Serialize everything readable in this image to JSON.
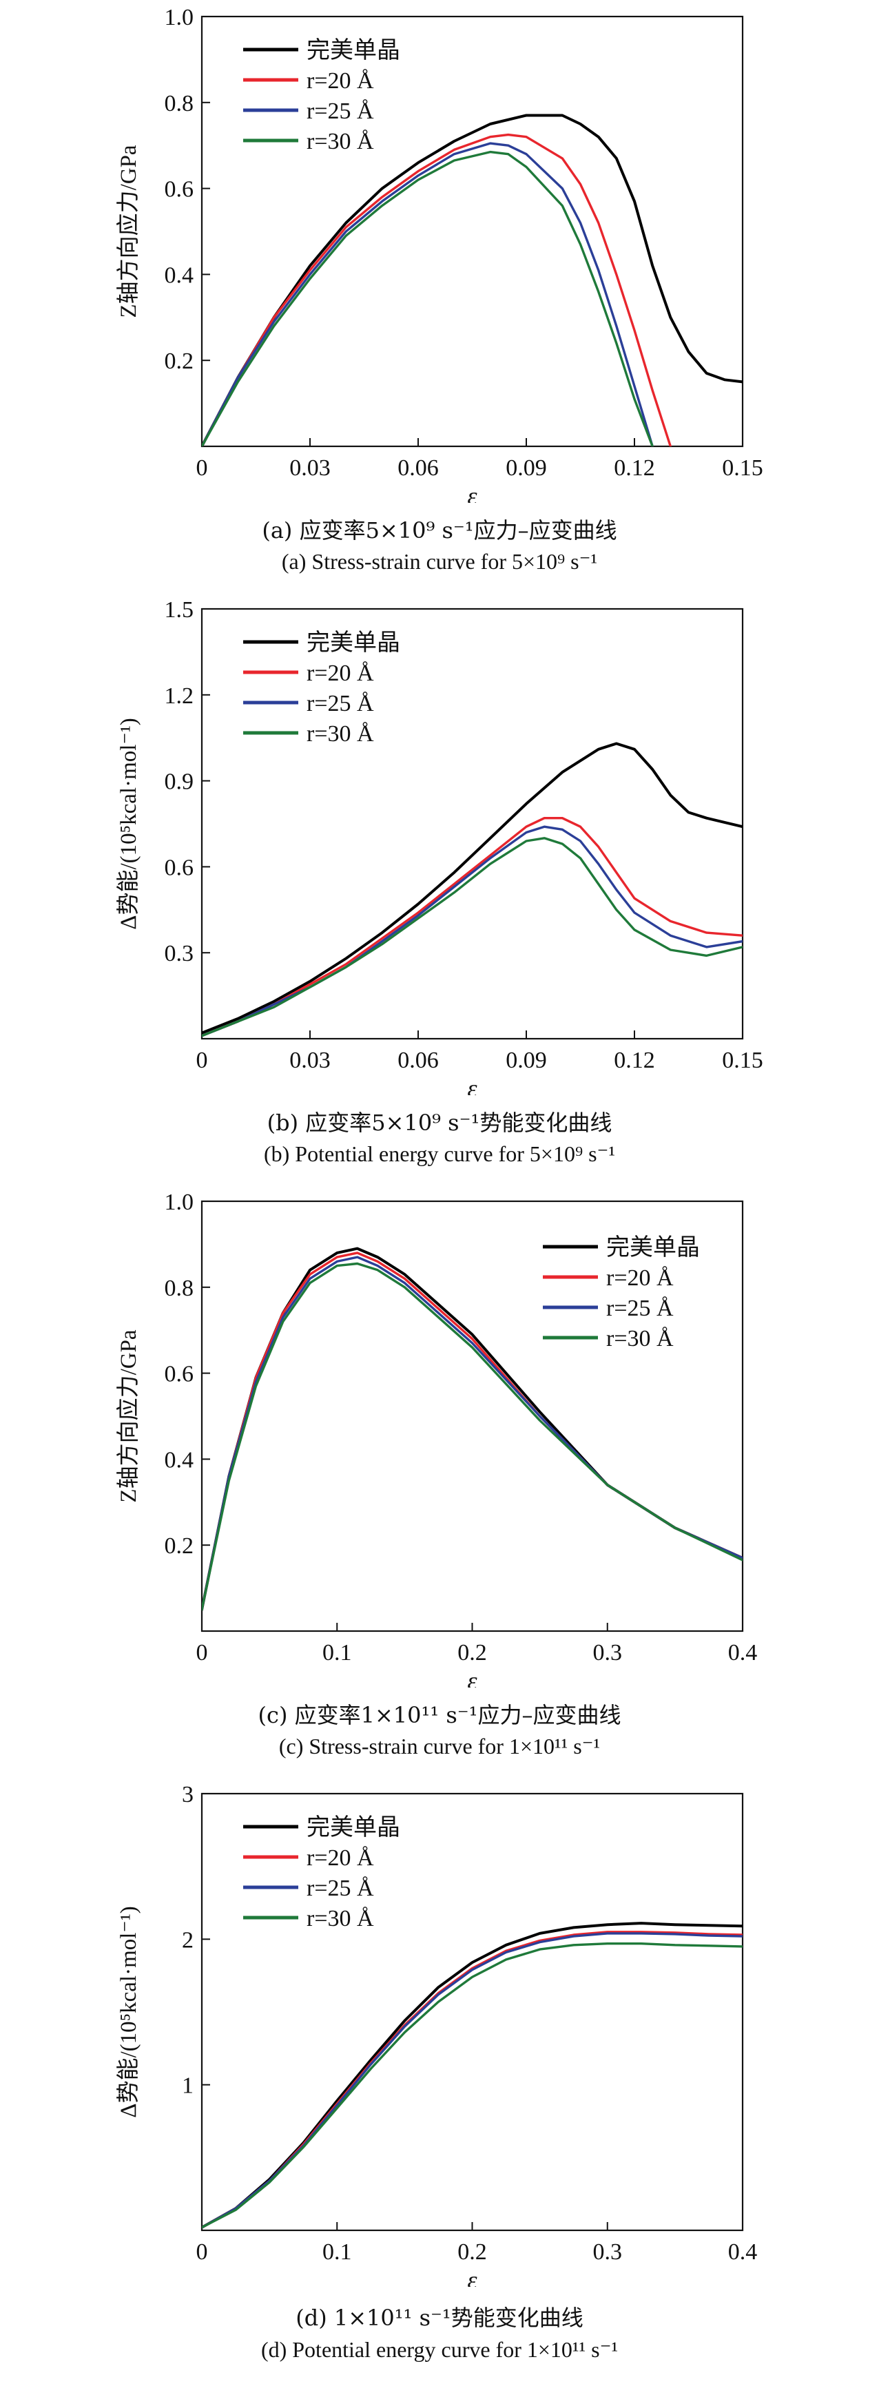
{
  "colors": {
    "perfect": "#000000",
    "r20": "#e8262d",
    "r25": "#2b3f98",
    "r30": "#1f7a3a"
  },
  "chart_data": [
    {
      "type": "line",
      "caption_cn": "(a) 应变率5×10⁹ s⁻¹应力–应变曲线",
      "caption_en": "(a) Stress-strain curve for 5×10⁹ s⁻¹",
      "xlabel": "ε",
      "ylabel": "Z轴方向应力/GPa",
      "xlim": [
        0,
        0.15
      ],
      "ylim": [
        0,
        1.0
      ],
      "xticks": [
        0,
        0.03,
        0.06,
        0.09,
        0.12,
        0.15
      ],
      "xtick_labels": [
        "0",
        "0.03",
        "0.06",
        "0.09",
        "0.12",
        "0.15"
      ],
      "yticks": [
        0.2,
        0.4,
        0.6,
        0.8,
        1.0
      ],
      "ytick_labels": [
        "0.2",
        "0.4",
        "0.6",
        "0.8",
        "1.0"
      ],
      "legend_position": "top-left",
      "series": [
        {
          "name": "完美单晶",
          "color": "#000000",
          "x": [
            0,
            0.01,
            0.02,
            0.03,
            0.04,
            0.05,
            0.06,
            0.07,
            0.08,
            0.09,
            0.1,
            0.105,
            0.11,
            0.115,
            0.12,
            0.125,
            0.13,
            0.135,
            0.14,
            0.145,
            0.15
          ],
          "y": [
            0,
            0.16,
            0.3,
            0.42,
            0.52,
            0.6,
            0.66,
            0.71,
            0.75,
            0.77,
            0.77,
            0.75,
            0.72,
            0.67,
            0.57,
            0.42,
            0.3,
            0.22,
            0.17,
            0.155,
            0.15
          ]
        },
        {
          "name": "r=20 Å",
          "color": "#e8262d",
          "x": [
            0,
            0.01,
            0.02,
            0.03,
            0.04,
            0.05,
            0.06,
            0.07,
            0.08,
            0.085,
            0.09,
            0.1,
            0.105,
            0.11,
            0.115,
            0.12,
            0.125,
            0.13
          ],
          "y": [
            0,
            0.16,
            0.3,
            0.41,
            0.51,
            0.58,
            0.64,
            0.69,
            0.72,
            0.725,
            0.72,
            0.67,
            0.61,
            0.52,
            0.4,
            0.27,
            0.13,
            0
          ]
        },
        {
          "name": "r=25 Å",
          "color": "#2b3f98",
          "x": [
            0,
            0.01,
            0.02,
            0.03,
            0.04,
            0.05,
            0.06,
            0.07,
            0.08,
            0.085,
            0.09,
            0.1,
            0.105,
            0.11,
            0.115,
            0.12,
            0.125
          ],
          "y": [
            0,
            0.16,
            0.29,
            0.4,
            0.5,
            0.57,
            0.63,
            0.68,
            0.705,
            0.7,
            0.68,
            0.6,
            0.52,
            0.41,
            0.28,
            0.14,
            0
          ]
        },
        {
          "name": "r=30 Å",
          "color": "#1f7a3a",
          "x": [
            0,
            0.01,
            0.02,
            0.03,
            0.04,
            0.05,
            0.06,
            0.07,
            0.08,
            0.085,
            0.09,
            0.1,
            0.105,
            0.11,
            0.115,
            0.12,
            0.125
          ],
          "y": [
            0,
            0.15,
            0.28,
            0.39,
            0.49,
            0.56,
            0.62,
            0.665,
            0.685,
            0.68,
            0.65,
            0.56,
            0.47,
            0.36,
            0.24,
            0.11,
            0
          ]
        }
      ]
    },
    {
      "type": "line",
      "caption_cn": "(b) 应变率5×10⁹ s⁻¹势能变化曲线",
      "caption_en": "(b) Potential energy curve for 5×10⁹ s⁻¹",
      "xlabel": "ε",
      "ylabel": "Δ势能/(10⁵kcal·mol⁻¹)",
      "xlim": [
        0,
        0.15
      ],
      "ylim": [
        0,
        1.5
      ],
      "xticks": [
        0,
        0.03,
        0.06,
        0.09,
        0.12,
        0.15
      ],
      "xtick_labels": [
        "0",
        "0.03",
        "0.06",
        "0.09",
        "0.12",
        "0.15"
      ],
      "yticks": [
        0.3,
        0.6,
        0.9,
        1.2,
        1.5
      ],
      "ytick_labels": [
        "0.3",
        "0.6",
        "0.9",
        "1.2",
        "1.5"
      ],
      "legend_position": "top-left",
      "series": [
        {
          "name": "完美单晶",
          "color": "#000000",
          "x": [
            0,
            0.01,
            0.02,
            0.03,
            0.04,
            0.05,
            0.06,
            0.07,
            0.08,
            0.09,
            0.1,
            0.11,
            0.115,
            0.12,
            0.125,
            0.13,
            0.135,
            0.14,
            0.145,
            0.15
          ],
          "y": [
            0.02,
            0.07,
            0.13,
            0.2,
            0.28,
            0.37,
            0.47,
            0.58,
            0.7,
            0.82,
            0.93,
            1.01,
            1.03,
            1.01,
            0.94,
            0.85,
            0.79,
            0.77,
            0.755,
            0.74
          ]
        },
        {
          "name": "r=20 Å",
          "color": "#e8262d",
          "x": [
            0,
            0.01,
            0.02,
            0.03,
            0.04,
            0.05,
            0.06,
            0.07,
            0.08,
            0.09,
            0.095,
            0.1,
            0.105,
            0.11,
            0.115,
            0.12,
            0.13,
            0.14,
            0.15
          ],
          "y": [
            0.01,
            0.06,
            0.12,
            0.19,
            0.26,
            0.35,
            0.44,
            0.54,
            0.64,
            0.74,
            0.77,
            0.77,
            0.74,
            0.67,
            0.58,
            0.49,
            0.41,
            0.37,
            0.36
          ]
        },
        {
          "name": "r=25 Å",
          "color": "#2b3f98",
          "x": [
            0,
            0.01,
            0.02,
            0.03,
            0.04,
            0.05,
            0.06,
            0.07,
            0.08,
            0.09,
            0.095,
            0.1,
            0.105,
            0.11,
            0.115,
            0.12,
            0.13,
            0.14,
            0.15
          ],
          "y": [
            0.01,
            0.06,
            0.12,
            0.18,
            0.25,
            0.34,
            0.43,
            0.53,
            0.63,
            0.72,
            0.74,
            0.73,
            0.69,
            0.61,
            0.52,
            0.44,
            0.36,
            0.32,
            0.34
          ]
        },
        {
          "name": "r=30 Å",
          "color": "#1f7a3a",
          "x": [
            0,
            0.01,
            0.02,
            0.03,
            0.04,
            0.05,
            0.06,
            0.07,
            0.08,
            0.09,
            0.095,
            0.1,
            0.105,
            0.11,
            0.115,
            0.12,
            0.13,
            0.14,
            0.15
          ],
          "y": [
            0.01,
            0.06,
            0.11,
            0.18,
            0.25,
            0.33,
            0.42,
            0.51,
            0.61,
            0.69,
            0.7,
            0.68,
            0.63,
            0.54,
            0.45,
            0.38,
            0.31,
            0.29,
            0.32
          ]
        }
      ]
    },
    {
      "type": "line",
      "caption_cn": "(c) 应变率1×10¹¹ s⁻¹应力–应变曲线",
      "caption_en": "(c) Stress-strain curve for 1×10¹¹ s⁻¹",
      "xlabel": "ε",
      "ylabel": "Z轴方向应力/GPa",
      "xlim": [
        0,
        0.4
      ],
      "ylim": [
        0,
        1.0
      ],
      "xticks": [
        0,
        0.1,
        0.2,
        0.3,
        0.4
      ],
      "xtick_labels": [
        "0",
        "0.1",
        "0.2",
        "0.3",
        "0.4"
      ],
      "yticks": [
        0.2,
        0.4,
        0.6,
        0.8,
        1.0
      ],
      "ytick_labels": [
        "0.2",
        "0.4",
        "0.6",
        "0.8",
        "1.0"
      ],
      "legend_position": "top-right",
      "series": [
        {
          "name": "完美单晶",
          "color": "#000000",
          "x": [
            0,
            0.02,
            0.04,
            0.06,
            0.08,
            0.1,
            0.115,
            0.13,
            0.15,
            0.2,
            0.25,
            0.3,
            0.35,
            0.4
          ],
          "y": [
            0.05,
            0.36,
            0.59,
            0.74,
            0.84,
            0.88,
            0.89,
            0.87,
            0.83,
            0.69,
            0.51,
            0.34,
            0.24,
            0.17
          ]
        },
        {
          "name": "r=20 Å",
          "color": "#e8262d",
          "x": [
            0,
            0.02,
            0.04,
            0.06,
            0.08,
            0.1,
            0.115,
            0.13,
            0.15,
            0.2,
            0.25,
            0.3,
            0.35,
            0.4
          ],
          "y": [
            0.05,
            0.36,
            0.59,
            0.74,
            0.83,
            0.87,
            0.88,
            0.86,
            0.82,
            0.68,
            0.5,
            0.34,
            0.24,
            0.17
          ]
        },
        {
          "name": "r=25 Å",
          "color": "#2b3f98",
          "x": [
            0,
            0.02,
            0.04,
            0.06,
            0.08,
            0.1,
            0.115,
            0.13,
            0.15,
            0.2,
            0.25,
            0.3,
            0.35,
            0.4
          ],
          "y": [
            0.05,
            0.36,
            0.58,
            0.73,
            0.82,
            0.86,
            0.87,
            0.85,
            0.81,
            0.67,
            0.5,
            0.34,
            0.24,
            0.17
          ]
        },
        {
          "name": "r=30 Å",
          "color": "#1f7a3a",
          "x": [
            0,
            0.02,
            0.04,
            0.06,
            0.08,
            0.1,
            0.115,
            0.13,
            0.15,
            0.2,
            0.25,
            0.3,
            0.35,
            0.4
          ],
          "y": [
            0.05,
            0.35,
            0.57,
            0.72,
            0.81,
            0.85,
            0.855,
            0.84,
            0.8,
            0.66,
            0.49,
            0.34,
            0.24,
            0.165
          ]
        }
      ]
    },
    {
      "type": "line",
      "caption_cn": "(d) 1×10¹¹ s⁻¹势能变化曲线",
      "caption_en": "(d) Potential energy curve for 1×10¹¹ s⁻¹",
      "xlabel": "ε",
      "ylabel": "Δ势能/(10⁵kcal·mol⁻¹)",
      "xlim": [
        0,
        0.4
      ],
      "ylim": [
        0,
        3
      ],
      "xticks": [
        0,
        0.1,
        0.2,
        0.3,
        0.4
      ],
      "xtick_labels": [
        "0",
        "0.1",
        "0.2",
        "0.3",
        "0.4"
      ],
      "yticks": [
        1,
        2,
        3
      ],
      "ytick_labels": [
        "1",
        "2",
        "3"
      ],
      "legend_position": "top-left",
      "series": [
        {
          "name": "完美单晶",
          "color": "#000000",
          "x": [
            0,
            0.025,
            0.05,
            0.075,
            0.1,
            0.125,
            0.15,
            0.175,
            0.2,
            0.225,
            0.25,
            0.275,
            0.3,
            0.325,
            0.35,
            0.375,
            0.4
          ],
          "y": [
            0.02,
            0.15,
            0.35,
            0.6,
            0.89,
            1.17,
            1.44,
            1.67,
            1.84,
            1.96,
            2.04,
            2.08,
            2.1,
            2.11,
            2.1,
            2.095,
            2.09
          ]
        },
        {
          "name": "r=20 Å",
          "color": "#e8262d",
          "x": [
            0,
            0.025,
            0.05,
            0.075,
            0.1,
            0.125,
            0.15,
            0.175,
            0.2,
            0.225,
            0.25,
            0.275,
            0.3,
            0.325,
            0.35,
            0.375,
            0.4
          ],
          "y": [
            0.02,
            0.15,
            0.34,
            0.59,
            0.87,
            1.15,
            1.41,
            1.63,
            1.8,
            1.92,
            1.99,
            2.03,
            2.05,
            2.05,
            2.045,
            2.035,
            2.03
          ]
        },
        {
          "name": "r=25 Å",
          "color": "#2b3f98",
          "x": [
            0,
            0.025,
            0.05,
            0.075,
            0.1,
            0.125,
            0.15,
            0.175,
            0.2,
            0.225,
            0.25,
            0.275,
            0.3,
            0.325,
            0.35,
            0.375,
            0.4
          ],
          "y": [
            0.02,
            0.15,
            0.34,
            0.58,
            0.86,
            1.14,
            1.4,
            1.62,
            1.79,
            1.91,
            1.98,
            2.02,
            2.04,
            2.04,
            2.035,
            2.025,
            2.02
          ]
        },
        {
          "name": "r=30 Å",
          "color": "#1f7a3a",
          "x": [
            0,
            0.025,
            0.05,
            0.075,
            0.1,
            0.125,
            0.15,
            0.175,
            0.2,
            0.225,
            0.25,
            0.275,
            0.3,
            0.325,
            0.35,
            0.375,
            0.4
          ],
          "y": [
            0.02,
            0.14,
            0.33,
            0.57,
            0.84,
            1.11,
            1.36,
            1.57,
            1.74,
            1.86,
            1.93,
            1.96,
            1.97,
            1.97,
            1.96,
            1.955,
            1.95
          ]
        }
      ]
    }
  ]
}
